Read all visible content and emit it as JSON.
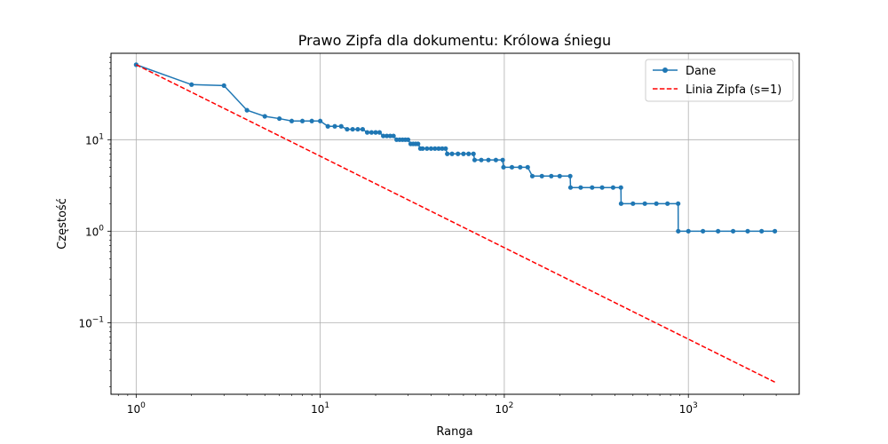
{
  "chart_data": {
    "type": "line",
    "title": "Prawo Zipfa dla dokumentu: Królowa śniegu",
    "xlabel": "Ranga",
    "ylabel": "Częstość",
    "xscale": "log",
    "yscale": "log",
    "xlim": [
      0.73,
      4000
    ],
    "ylim": [
      0.0165,
      88
    ],
    "grid": true,
    "legend_position": "top-right",
    "x_ticks": [
      {
        "value": 1,
        "base": "10",
        "exp": "0"
      },
      {
        "value": 10,
        "base": "10",
        "exp": "1"
      },
      {
        "value": 100,
        "base": "10",
        "exp": "2"
      },
      {
        "value": 1000,
        "base": "10",
        "exp": "3"
      }
    ],
    "y_ticks": [
      {
        "value": 0.1,
        "base": "10",
        "exp": "−1"
      },
      {
        "value": 1,
        "base": "10",
        "exp": "0"
      },
      {
        "value": 10,
        "base": "10",
        "exp": "1"
      }
    ],
    "series": [
      {
        "name": "Dane",
        "color": "#1f77b4",
        "style": "solid-with-dots",
        "points": [
          [
            1,
            66
          ],
          [
            2,
            40
          ],
          [
            3,
            39
          ],
          [
            4,
            21
          ],
          [
            5,
            18
          ],
          [
            6,
            17
          ],
          [
            7,
            16
          ],
          [
            8,
            16
          ],
          [
            9,
            16
          ],
          [
            10,
            16
          ],
          [
            11,
            14
          ],
          [
            12,
            14
          ],
          [
            13,
            14
          ],
          [
            14,
            13
          ],
          [
            15,
            13
          ],
          [
            16,
            13
          ],
          [
            17,
            13
          ],
          [
            18,
            12
          ],
          [
            19,
            12
          ],
          [
            20,
            12
          ],
          [
            21,
            12
          ],
          [
            22,
            11
          ],
          [
            23,
            11
          ],
          [
            24,
            11
          ],
          [
            25,
            11
          ],
          [
            26,
            10
          ],
          [
            27,
            10
          ],
          [
            28,
            10
          ],
          [
            29,
            10
          ],
          [
            30,
            10
          ],
          [
            31,
            9
          ],
          [
            32,
            9
          ],
          [
            33,
            9
          ],
          [
            34,
            9
          ],
          [
            35,
            8
          ],
          [
            36,
            8
          ],
          [
            38,
            8
          ],
          [
            40,
            8
          ],
          [
            42,
            8
          ],
          [
            44,
            8
          ],
          [
            46,
            8
          ],
          [
            48,
            8
          ],
          [
            49,
            7
          ],
          [
            52,
            7
          ],
          [
            56,
            7
          ],
          [
            60,
            7
          ],
          [
            64,
            7
          ],
          [
            68,
            7
          ],
          [
            69,
            6
          ],
          [
            75,
            6
          ],
          [
            82,
            6
          ],
          [
            90,
            6
          ],
          [
            98,
            6
          ],
          [
            99,
            5
          ],
          [
            110,
            5
          ],
          [
            122,
            5
          ],
          [
            134,
            5
          ],
          [
            142,
            4
          ],
          [
            160,
            4
          ],
          [
            180,
            4
          ],
          [
            200,
            4
          ],
          [
            228,
            4
          ],
          [
            229,
            3
          ],
          [
            260,
            3
          ],
          [
            300,
            3
          ],
          [
            340,
            3
          ],
          [
            390,
            3
          ],
          [
            430,
            3
          ],
          [
            431,
            2
          ],
          [
            500,
            2
          ],
          [
            580,
            2
          ],
          [
            670,
            2
          ],
          [
            770,
            2
          ],
          [
            880,
            2
          ],
          [
            881,
            1
          ],
          [
            1000,
            1
          ],
          [
            1200,
            1
          ],
          [
            1450,
            1
          ],
          [
            1750,
            1
          ],
          [
            2100,
            1
          ],
          [
            2500,
            1
          ],
          [
            2950,
            1
          ]
        ]
      },
      {
        "name": "Linia Zipfa (s=1)",
        "color": "#ff0000",
        "style": "dashed",
        "formula": "66/x",
        "points": [
          [
            1,
            66
          ],
          [
            2950,
            0.0224
          ]
        ]
      }
    ]
  }
}
